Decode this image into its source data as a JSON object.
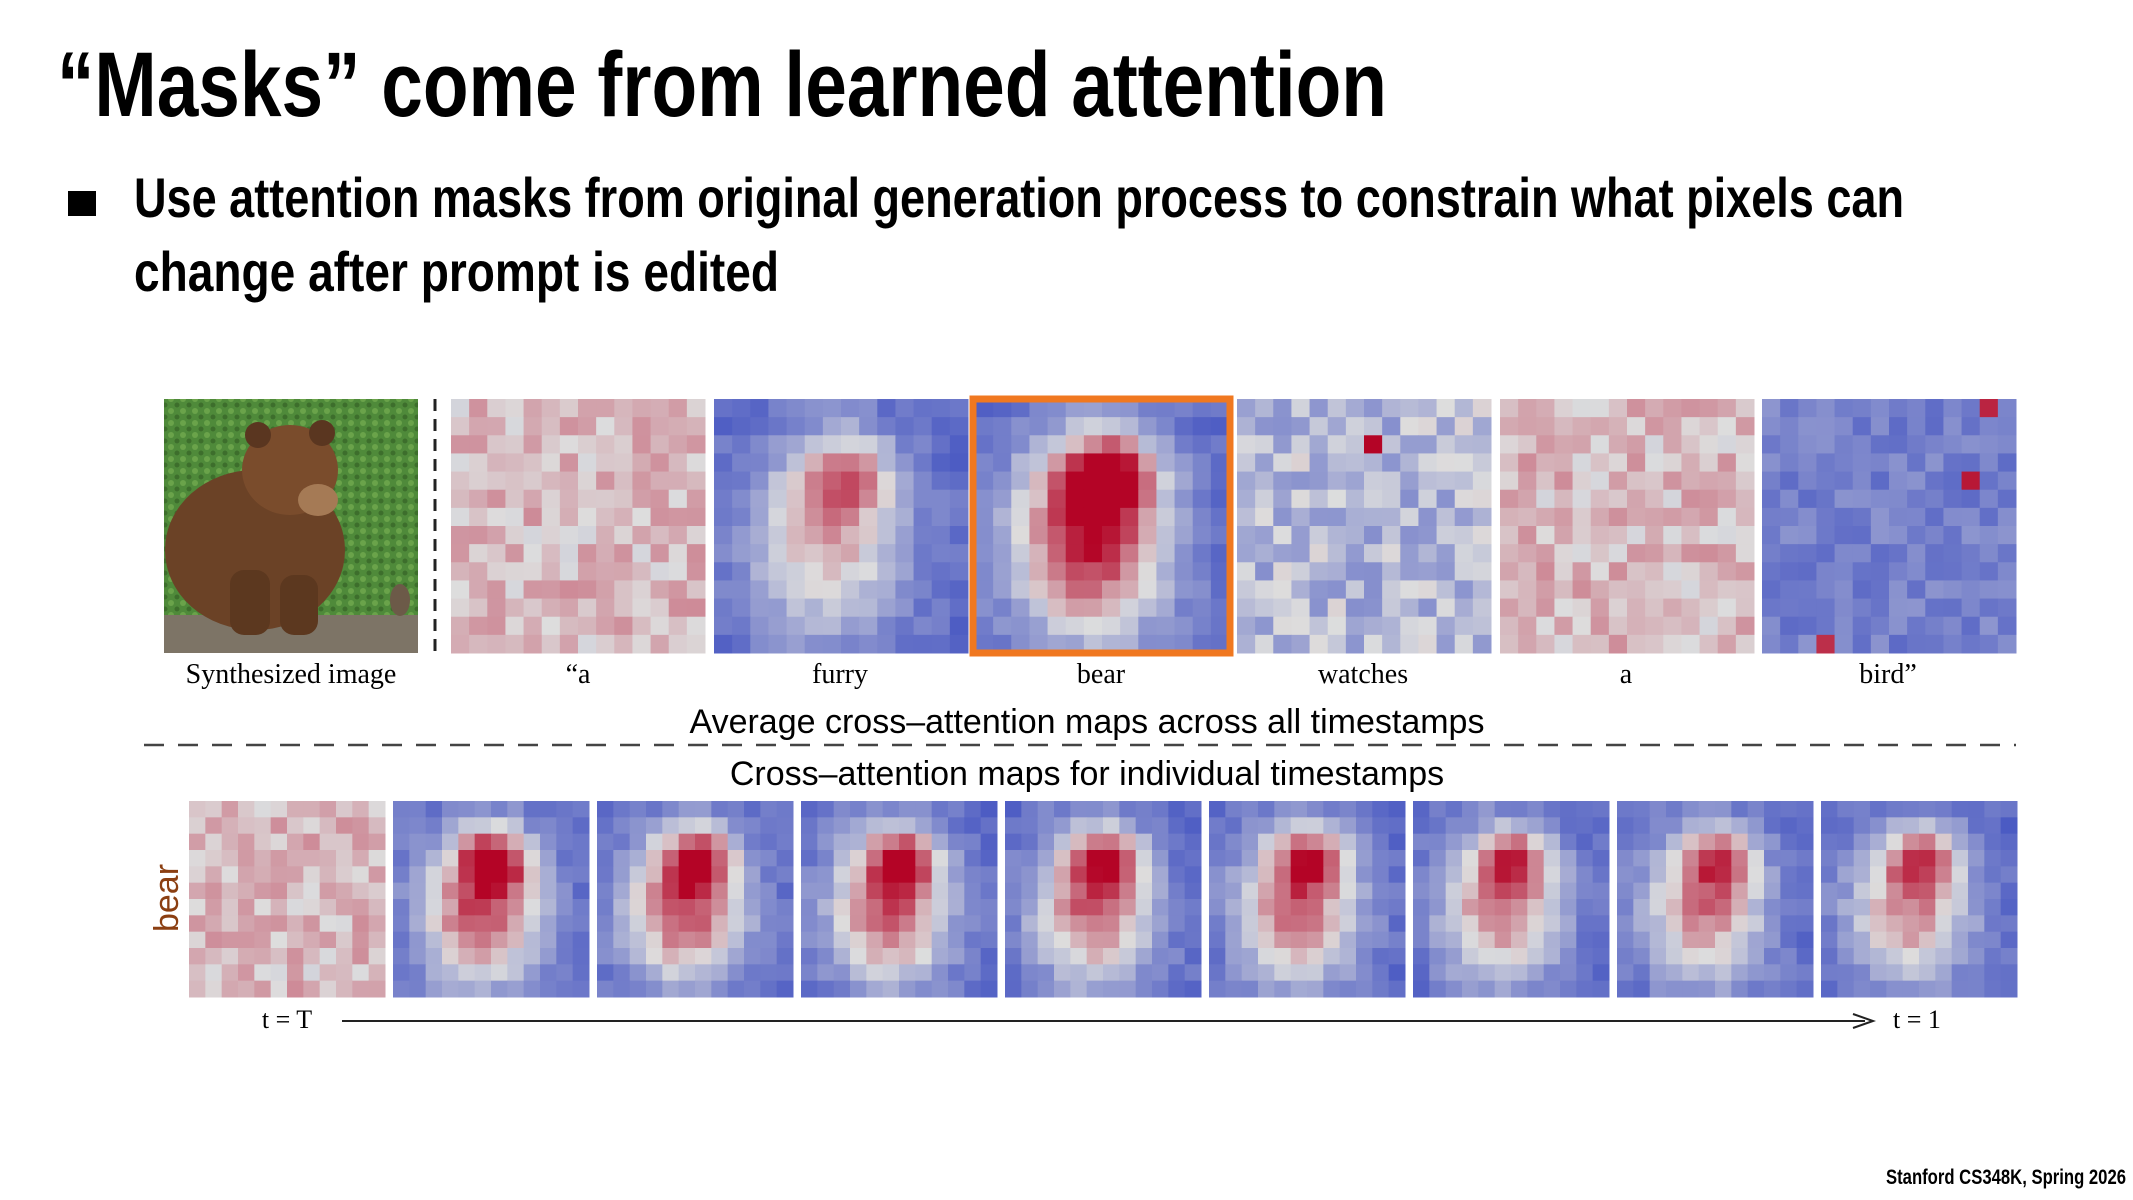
{
  "header": {
    "title": "“Masks” come from learned attention"
  },
  "bullets": [
    "Use attention masks from original generation process to constrain what pixels can",
    "change after prompt is edited"
  ],
  "figure": {
    "top_labels": [
      "Synthesized image",
      "“a",
      "furry",
      "bear",
      "watches",
      "a",
      "bird”"
    ],
    "top_caption": "Average cross–attention maps across all timestamps",
    "bottom_caption": "Cross–attention maps for individual  timestamps",
    "row_label": "bear",
    "time_start": "t = T",
    "time_end": "t = 1"
  },
  "footer": "Stanford CS348K, Spring 2026"
}
